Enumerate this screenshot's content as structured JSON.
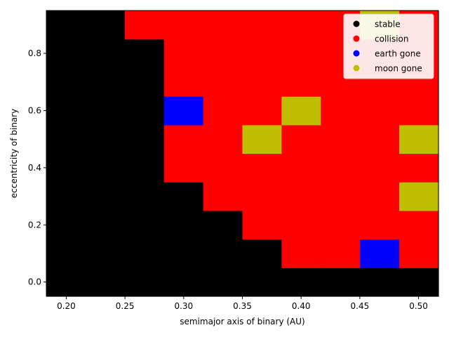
{
  "chart_data": {
    "type": "heatmap",
    "title": "",
    "xlabel": "semimajor axis of binary (AU)",
    "ylabel": "eccentricity of binary",
    "xlim": [
      0.183,
      0.517
    ],
    "ylim": [
      -0.05,
      0.95
    ],
    "x_ticks": [
      "0.20",
      "0.25",
      "0.30",
      "0.35",
      "0.40",
      "0.45",
      "0.50"
    ],
    "y_ticks": [
      "0.0",
      "0.2",
      "0.4",
      "0.6",
      "0.8"
    ],
    "x": [
      0.2,
      0.233,
      0.267,
      0.3,
      0.333,
      0.367,
      0.4,
      0.433,
      0.467,
      0.5
    ],
    "y": [
      0.0,
      0.1,
      0.2,
      0.3,
      0.4,
      0.5,
      0.6,
      0.7,
      0.8,
      0.9
    ],
    "categories": [
      "stable",
      "collision",
      "earth gone",
      "moon gone"
    ],
    "colors": {
      "stable": "#000000",
      "collision": "#ff0000",
      "earth gone": "#0000ff",
      "moon gone": "#bfbf00"
    },
    "grid": [
      [
        "stable",
        "stable",
        "stable",
        "stable",
        "stable",
        "stable",
        "stable",
        "stable",
        "stable",
        "stable"
      ],
      [
        "stable",
        "stable",
        "stable",
        "stable",
        "stable",
        "stable",
        "collision",
        "collision",
        "earth gone",
        "collision"
      ],
      [
        "stable",
        "stable",
        "stable",
        "stable",
        "stable",
        "collision",
        "collision",
        "collision",
        "collision",
        "collision"
      ],
      [
        "stable",
        "stable",
        "stable",
        "stable",
        "collision",
        "collision",
        "collision",
        "collision",
        "collision",
        "moon gone"
      ],
      [
        "stable",
        "stable",
        "stable",
        "collision",
        "collision",
        "collision",
        "collision",
        "collision",
        "collision",
        "collision"
      ],
      [
        "stable",
        "stable",
        "stable",
        "collision",
        "collision",
        "moon gone",
        "collision",
        "collision",
        "collision",
        "moon gone"
      ],
      [
        "stable",
        "stable",
        "stable",
        "earth gone",
        "collision",
        "collision",
        "moon gone",
        "collision",
        "collision",
        "collision"
      ],
      [
        "stable",
        "stable",
        "stable",
        "collision",
        "collision",
        "collision",
        "collision",
        "collision",
        "collision",
        "collision"
      ],
      [
        "stable",
        "stable",
        "stable",
        "collision",
        "collision",
        "collision",
        "collision",
        "collision",
        "collision",
        "collision"
      ],
      [
        "stable",
        "stable",
        "collision",
        "collision",
        "collision",
        "collision",
        "collision",
        "collision",
        "moon gone",
        "collision"
      ]
    ],
    "legend": {
      "placement": "top-right",
      "entries": [
        "stable",
        "collision",
        "earth gone",
        "moon gone"
      ]
    },
    "grid_lines": false
  }
}
